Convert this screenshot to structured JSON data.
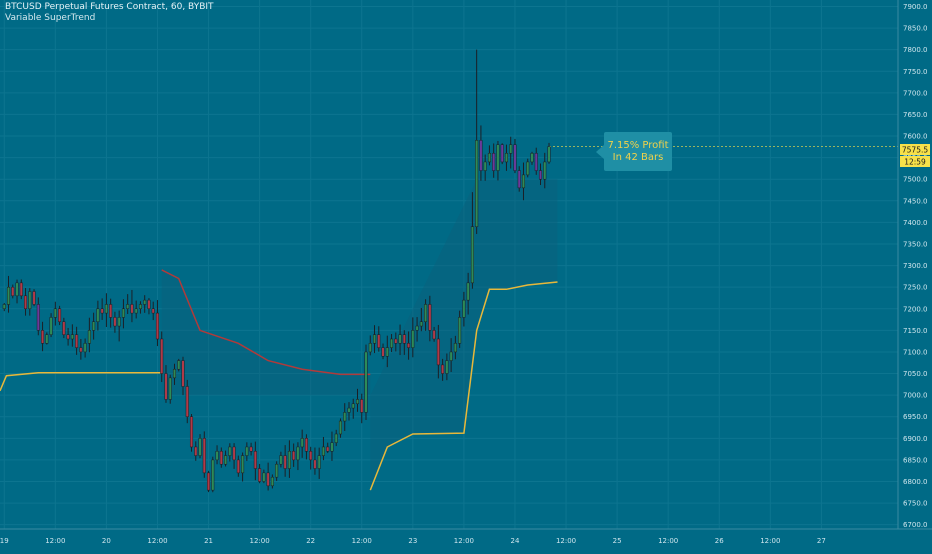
{
  "header": {
    "title": "BTCUSD Perpetual Futures Contract, 60, BYBIT",
    "indicator": "Variable SuperTrend"
  },
  "annotation": {
    "line1": "7.15% Profit",
    "line2": "In 42 Bars"
  },
  "price_label": {
    "value": "7575.5",
    "countdown": "12:59"
  },
  "colors": {
    "background": "#006a86",
    "up_candle": "#2e8b57",
    "down_candle": "#b03a48",
    "alt_down_candle": "#6b3a9a",
    "supertrend_up": "#e8b83a",
    "supertrend_down": "#b13a3a",
    "price_label_bg": "#f7e14a"
  },
  "chart_data": {
    "type": "candlestick",
    "title": "BTCUSD Perpetual Futures Contract, 60, BYBIT",
    "y_ticks": [
      6700.0,
      6750.0,
      6800.0,
      6850.0,
      6900.0,
      6950.0,
      7000.0,
      7050.0,
      7100.0,
      7150.0,
      7200.0,
      7250.0,
      7300.0,
      7350.0,
      7400.0,
      7450.0,
      7500.0,
      7550.0,
      7600.0,
      7650.0,
      7700.0,
      7750.0,
      7800.0,
      7850.0,
      7900.0
    ],
    "ylim": [
      6690,
      7915
    ],
    "x_tick_labels": [
      "19",
      "12:00",
      "20",
      "12:00",
      "21",
      "12:00",
      "22",
      "12:00",
      "23",
      "12:00",
      "24",
      "12:00",
      "25",
      "12:00",
      "26",
      "12:00",
      "27"
    ],
    "x_bar_index_of_ticks": [
      0,
      12,
      24,
      36,
      48,
      60,
      72,
      84,
      96,
      108,
      120,
      132,
      144,
      156,
      168,
      180,
      192
    ],
    "bars_total_range": [
      -1,
      210
    ],
    "last_price": 7575.5,
    "close": [
      7210,
      7250,
      7230,
      7260,
      7230,
      7200,
      7240,
      7210,
      7150,
      7120,
      7140,
      7180,
      7200,
      7170,
      7140,
      7130,
      7140,
      7110,
      7100,
      7120,
      7150,
      7170,
      7200,
      7190,
      7210,
      7180,
      7160,
      7180,
      7200,
      7210,
      7190,
      7200,
      7210,
      7220,
      7200,
      7190,
      7130,
      7050,
      6990,
      7040,
      7060,
      7080,
      7020,
      6950,
      6880,
      6860,
      6900,
      6820,
      6780,
      6850,
      6870,
      6840,
      6860,
      6880,
      6850,
      6820,
      6860,
      6880,
      6870,
      6830,
      6800,
      6820,
      6790,
      6810,
      6840,
      6860,
      6830,
      6870,
      6850,
      6880,
      6900,
      6870,
      6850,
      6830,
      6860,
      6880,
      6870,
      6890,
      6910,
      6940,
      6960,
      6970,
      6980,
      6990,
      6960,
      7100,
      7120,
      7140,
      7110,
      7090,
      7110,
      7130,
      7120,
      7140,
      7120,
      7110,
      7150,
      7160,
      7170,
      7210,
      7150,
      7130,
      7070,
      7050,
      7080,
      7100,
      7120,
      7180,
      7220,
      7260,
      7390,
      7590,
      7520,
      7540,
      7560,
      7520,
      7580,
      7540,
      7560,
      7580,
      7520,
      7480,
      7510,
      7540,
      7560,
      7520,
      7500,
      7540,
      7575.5
    ],
    "supertrend_up_1": {
      "from_bar": -1,
      "to_bar": 37,
      "values_start": [
        7010,
        7045
      ],
      "flat_value": 7052
    },
    "supertrend_down": {
      "from_bar": 37,
      "to_bar": 86,
      "points": [
        [
          37,
          7290
        ],
        [
          41,
          7270
        ],
        [
          46,
          7150
        ],
        [
          55,
          7120
        ],
        [
          62,
          7080
        ],
        [
          70,
          7060
        ],
        [
          79,
          7048
        ],
        [
          86,
          7048
        ]
      ]
    },
    "supertrend_up_2": {
      "from_bar": 86,
      "to_bar": 130,
      "points": [
        [
          86,
          6780
        ],
        [
          90,
          6880
        ],
        [
          96,
          6910
        ],
        [
          108,
          6912
        ],
        [
          111,
          7150
        ],
        [
          114,
          7245
        ],
        [
          118,
          7245
        ],
        [
          123,
          7255
        ],
        [
          130,
          7262
        ]
      ]
    }
  }
}
